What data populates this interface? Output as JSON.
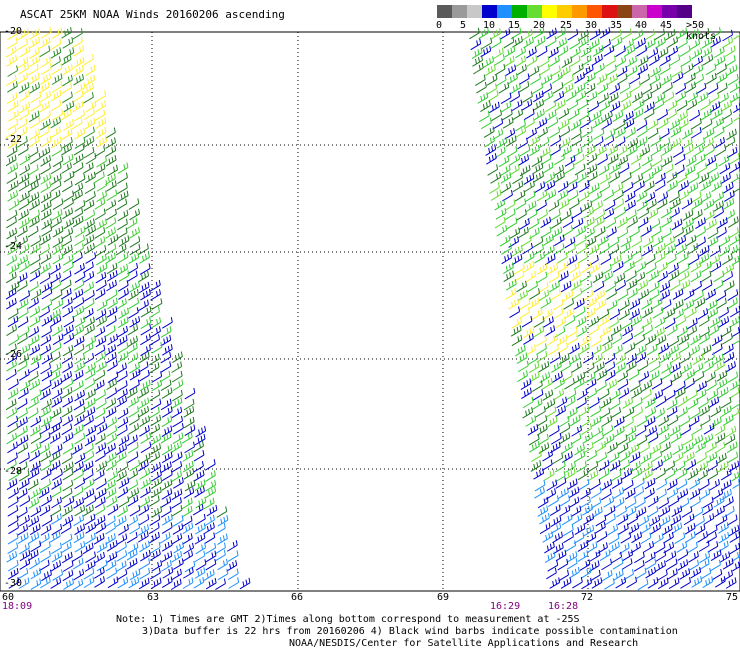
{
  "title": "ASCAT 25KM NOAA Winds 20160206 ascending",
  "legend": {
    "colors": [
      "#5a5a5a",
      "#9a9a9a",
      "#c8c8c8",
      "#0000cc",
      "#1e90ff",
      "#00b000",
      "#66dd33",
      "#ffff00",
      "#ffcc00",
      "#ff9900",
      "#ff5500",
      "#dd1111",
      "#8b4513",
      "#cc66aa",
      "#cc00cc",
      "#7700aa",
      "#550088"
    ],
    "labels": [
      "0",
      "5",
      "10",
      "15",
      "20",
      "25",
      "30",
      "35",
      "40",
      "45",
      ">50 knots"
    ]
  },
  "lat_labels": [
    "-20",
    "-22",
    "-24",
    "-26",
    "-28",
    "-30"
  ],
  "lon_labels": [
    "60",
    "63",
    "66",
    "69",
    "72",
    "75"
  ],
  "time_labels": [
    "18:09",
    "16:29",
    "16:28"
  ],
  "notes": [
    "Note: 1) Times are GMT 2)Times along bottom correspond to measurement at -25S",
    "3)Data buffer is 22 hrs from 20160206 4) Black wind barbs indicate possible contamination",
    "NOAA/NESDIS/Center for Satellite Applications and Research"
  ]
}
